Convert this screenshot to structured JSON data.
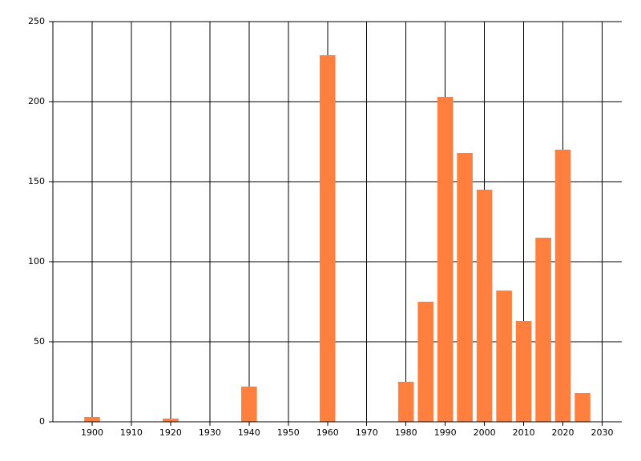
{
  "chart_data": {
    "type": "bar",
    "x": [
      1900,
      1920,
      1940,
      1960,
      1980,
      1985,
      1990,
      1995,
      2000,
      2005,
      2010,
      2015,
      2020,
      2025
    ],
    "values": [
      3,
      2,
      22,
      229,
      25,
      75,
      203,
      168,
      145,
      82,
      63,
      115,
      170,
      18
    ],
    "color": "#ff7f3f",
    "xlim": [
      1890,
      2035
    ],
    "xticks": [
      1900,
      1910,
      1920,
      1930,
      1940,
      1950,
      1960,
      1970,
      1980,
      1990,
      2000,
      2010,
      2020,
      2030
    ],
    "ylim": [
      0,
      250
    ],
    "yticks": [
      0,
      50,
      100,
      150,
      200,
      250
    ],
    "grid": true
  }
}
